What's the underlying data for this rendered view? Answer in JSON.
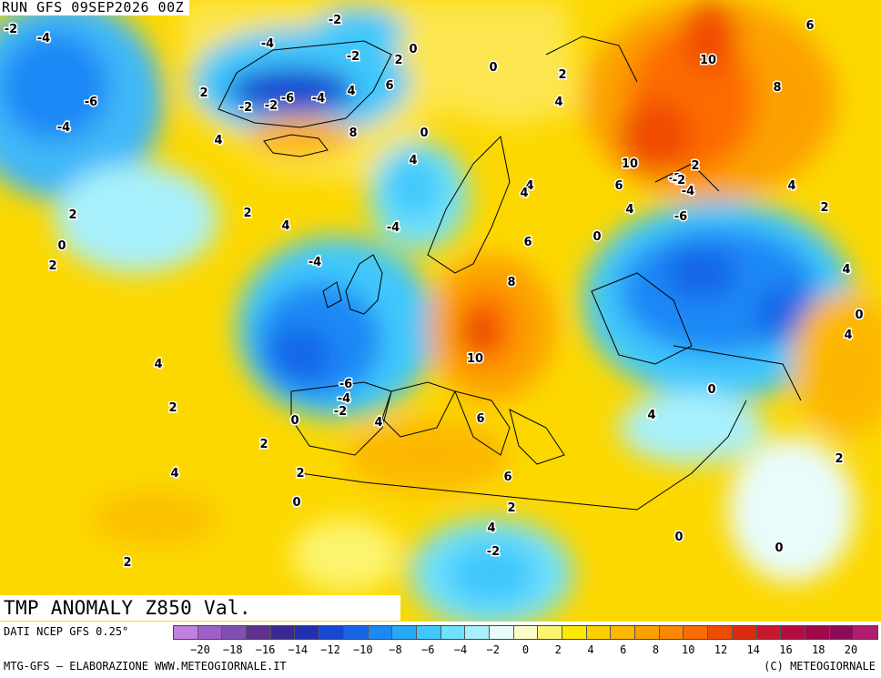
{
  "header": {
    "run_label": "RUN GFS 09SEP2026 00Z"
  },
  "map": {
    "title": "TMP ANOMALY Z850 Val. 00Z09SEP2026",
    "contour_labels": [
      "-2",
      "-4",
      "-2",
      "-4",
      "-2",
      "2",
      "0",
      "0",
      "-2",
      "-6",
      "-4",
      "-2",
      "4",
      "6",
      "2",
      "2",
      "4",
      "-6",
      "-4",
      "8",
      "0",
      "4",
      "2",
      "4",
      "-2",
      "-2",
      "0",
      "2",
      "4",
      "-4",
      "4",
      "10",
      "8",
      "10",
      "2",
      "-2",
      "-4",
      "6",
      "6",
      "4",
      "6",
      "-6",
      "4",
      "0",
      "4",
      "4",
      "-4",
      "8",
      "0",
      "2",
      "4",
      "10",
      "4",
      "6",
      "-6",
      "4",
      "-4",
      "2",
      "-2",
      "4",
      "0",
      "2",
      "6",
      "0",
      "2",
      "4",
      "4",
      "0",
      "2",
      "-2",
      "0",
      "2",
      "2",
      "2",
      "0"
    ]
  },
  "legend": {
    "source": "DATI NCEP GFS 0.25°",
    "credits": "MTG-GFS — ELABORAZIONE WWW.METEOGIORNALE.IT",
    "copyright": "(C) METEOGIORNALE",
    "tick_labels": [
      "−20",
      "−18",
      "−16",
      "−14",
      "−12",
      "−10",
      "−8",
      "−6",
      "−4",
      "−2",
      "0",
      "2",
      "4",
      "6",
      "8",
      "10",
      "12",
      "14",
      "16",
      "18",
      "20"
    ],
    "colors": [
      "#c080e0",
      "#a060c8",
      "#8050b0",
      "#603090",
      "#3a2890",
      "#2030b0",
      "#1848d0",
      "#1866e8",
      "#1e88f5",
      "#28a8f8",
      "#40c8fc",
      "#70e0fc",
      "#a8f0fc",
      "#e8fcfc",
      "#fcfcc8",
      "#fcf470",
      "#fce800",
      "#fcd000",
      "#fcb800",
      "#fca000",
      "#fc8800",
      "#fc6c00",
      "#f04c00",
      "#dc2c10",
      "#c81830",
      "#b40c40",
      "#a0084c",
      "#8c0c58",
      "#b01c70"
    ]
  }
}
